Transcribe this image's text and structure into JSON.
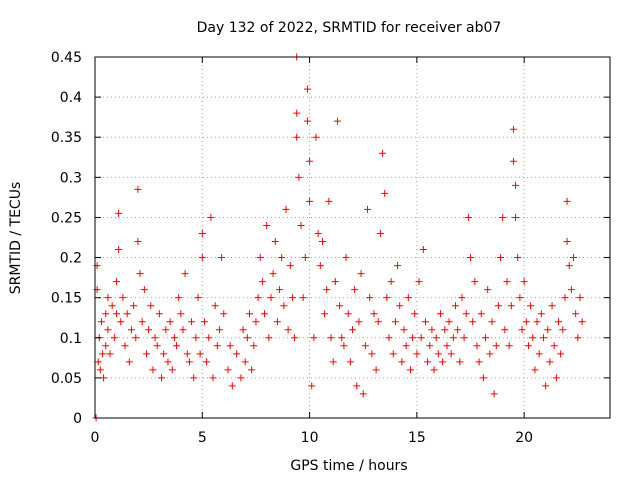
{
  "chart_data": {
    "type": "scatter",
    "title": "Day 132 of 2022, SRMTID for receiver ab07",
    "xlabel": "GPS time / hours",
    "ylabel": "SRMTID / TECUs",
    "xlim": [
      0,
      24
    ],
    "ylim": [
      0,
      0.45
    ],
    "xticks": [
      0,
      5,
      10,
      15,
      20
    ],
    "yticks": [
      0,
      0.05,
      0.1,
      0.15,
      0.2,
      0.25,
      0.3,
      0.35,
      0.4,
      0.45
    ],
    "xtick_labels": [
      "0",
      "5",
      "10",
      "15",
      "20"
    ],
    "ytick_labels": [
      "0",
      "0.05",
      "0.1",
      "0.15",
      "0.2",
      "0.25",
      "0.3",
      "0.35",
      "0.4",
      "0.45"
    ],
    "grid": true,
    "marker": "+",
    "color": "#ff0000",
    "series": [
      {
        "name": "SRMTID",
        "points": [
          [
            0.05,
            0.0
          ],
          [
            0.1,
            0.19
          ],
          [
            0.1,
            0.16
          ],
          [
            0.15,
            0.07
          ],
          [
            0.2,
            0.1
          ],
          [
            0.25,
            0.06
          ],
          [
            0.3,
            0.12
          ],
          [
            0.35,
            0.08
          ],
          [
            0.4,
            0.05
          ],
          [
            0.5,
            0.09
          ],
          [
            0.5,
            0.13
          ],
          [
            0.6,
            0.15
          ],
          [
            0.6,
            0.11
          ],
          [
            0.7,
            0.08
          ],
          [
            0.8,
            0.14
          ],
          [
            0.9,
            0.1
          ],
          [
            1.0,
            0.17
          ],
          [
            1.0,
            0.13
          ],
          [
            1.1,
            0.255
          ],
          [
            1.1,
            0.21
          ],
          [
            1.2,
            0.12
          ],
          [
            1.3,
            0.15
          ],
          [
            1.4,
            0.09
          ],
          [
            1.5,
            0.13
          ],
          [
            1.6,
            0.07
          ],
          [
            1.7,
            0.11
          ],
          [
            1.8,
            0.14
          ],
          [
            1.9,
            0.1
          ],
          [
            2.0,
            0.285
          ],
          [
            2.0,
            0.22
          ],
          [
            2.1,
            0.18
          ],
          [
            2.2,
            0.12
          ],
          [
            2.3,
            0.16
          ],
          [
            2.4,
            0.08
          ],
          [
            2.5,
            0.11
          ],
          [
            2.6,
            0.14
          ],
          [
            2.7,
            0.06
          ],
          [
            2.8,
            0.1
          ],
          [
            2.9,
            0.09
          ],
          [
            3.0,
            0.13
          ],
          [
            3.1,
            0.05
          ],
          [
            3.2,
            0.08
          ],
          [
            3.3,
            0.11
          ],
          [
            3.4,
            0.07
          ],
          [
            3.5,
            0.12
          ],
          [
            3.6,
            0.06
          ],
          [
            3.7,
            0.1
          ],
          [
            3.8,
            0.09
          ],
          [
            3.9,
            0.15
          ],
          [
            4.0,
            0.13
          ],
          [
            4.1,
            0.11
          ],
          [
            4.2,
            0.18
          ],
          [
            4.3,
            0.08
          ],
          [
            4.4,
            0.07
          ],
          [
            4.5,
            0.12
          ],
          [
            4.6,
            0.05
          ],
          [
            4.7,
            0.1
          ],
          [
            4.8,
            0.15
          ],
          [
            4.9,
            0.08
          ],
          [
            5.0,
            0.2
          ],
          [
            5.0,
            0.23
          ],
          [
            5.1,
            0.12
          ],
          [
            5.2,
            0.07
          ],
          [
            5.3,
            0.1
          ],
          [
            5.4,
            0.25
          ],
          [
            5.5,
            0.05
          ],
          [
            5.6,
            0.14
          ],
          [
            5.7,
            0.09
          ],
          [
            5.8,
            0.11
          ],
          [
            5.9,
            0.2
          ],
          [
            6.0,
            0.13
          ],
          [
            6.2,
            0.06
          ],
          [
            6.3,
            0.09
          ],
          [
            6.4,
            0.04
          ],
          [
            6.6,
            0.08
          ],
          [
            6.8,
            0.05
          ],
          [
            6.9,
            0.11
          ],
          [
            7.0,
            0.07
          ],
          [
            7.1,
            0.1
          ],
          [
            7.2,
            0.13
          ],
          [
            7.3,
            0.06
          ],
          [
            7.4,
            0.09
          ],
          [
            7.5,
            0.12
          ],
          [
            7.6,
            0.15
          ],
          [
            7.7,
            0.2
          ],
          [
            7.8,
            0.17
          ],
          [
            7.9,
            0.13
          ],
          [
            8.0,
            0.24
          ],
          [
            8.1,
            0.1
          ],
          [
            8.2,
            0.15
          ],
          [
            8.3,
            0.18
          ],
          [
            8.4,
            0.22
          ],
          [
            8.5,
            0.12
          ],
          [
            8.6,
            0.16
          ],
          [
            8.7,
            0.2
          ],
          [
            8.8,
            0.14
          ],
          [
            8.9,
            0.26
          ],
          [
            9.0,
            0.11
          ],
          [
            9.1,
            0.19
          ],
          [
            9.2,
            0.15
          ],
          [
            9.3,
            0.1
          ],
          [
            9.4,
            0.38
          ],
          [
            9.4,
            0.45
          ],
          [
            9.4,
            0.35
          ],
          [
            9.5,
            0.3
          ],
          [
            9.6,
            0.24
          ],
          [
            9.7,
            0.15
          ],
          [
            9.8,
            0.2
          ],
          [
            9.9,
            0.41
          ],
          [
            9.9,
            0.37
          ],
          [
            10.0,
            0.32
          ],
          [
            10.0,
            0.27
          ],
          [
            10.1,
            0.04
          ],
          [
            10.2,
            0.1
          ],
          [
            10.3,
            0.35
          ],
          [
            10.4,
            0.23
          ],
          [
            10.5,
            0.19
          ],
          [
            10.6,
            0.22
          ],
          [
            10.7,
            0.13
          ],
          [
            10.8,
            0.16
          ],
          [
            10.9,
            0.27
          ],
          [
            11.0,
            0.1
          ],
          [
            11.1,
            0.07
          ],
          [
            11.2,
            0.17
          ],
          [
            11.3,
            0.37
          ],
          [
            11.4,
            0.14
          ],
          [
            11.5,
            0.1
          ],
          [
            11.6,
            0.09
          ],
          [
            11.7,
            0.2
          ],
          [
            11.8,
            0.13
          ],
          [
            11.9,
            0.07
          ],
          [
            12.0,
            0.11
          ],
          [
            12.1,
            0.16
          ],
          [
            12.2,
            0.04
          ],
          [
            12.3,
            0.12
          ],
          [
            12.4,
            0.18
          ],
          [
            12.5,
            0.03
          ],
          [
            12.6,
            0.09
          ],
          [
            12.7,
            0.26
          ],
          [
            12.8,
            0.15
          ],
          [
            12.9,
            0.08
          ],
          [
            13.0,
            0.13
          ],
          [
            13.1,
            0.06
          ],
          [
            13.2,
            0.12
          ],
          [
            13.3,
            0.23
          ],
          [
            13.4,
            0.33
          ],
          [
            13.5,
            0.28
          ],
          [
            13.6,
            0.15
          ],
          [
            13.7,
            0.1
          ],
          [
            13.8,
            0.17
          ],
          [
            13.9,
            0.08
          ],
          [
            14.0,
            0.12
          ],
          [
            14.1,
            0.19
          ],
          [
            14.2,
            0.14
          ],
          [
            14.3,
            0.07
          ],
          [
            14.4,
            0.11
          ],
          [
            14.5,
            0.09
          ],
          [
            14.6,
            0.15
          ],
          [
            14.7,
            0.06
          ],
          [
            14.8,
            0.1
          ],
          [
            14.9,
            0.13
          ],
          [
            15.0,
            0.08
          ],
          [
            15.1,
            0.17
          ],
          [
            15.2,
            0.1
          ],
          [
            15.3,
            0.21
          ],
          [
            15.4,
            0.12
          ],
          [
            15.5,
            0.07
          ],
          [
            15.6,
            0.09
          ],
          [
            15.7,
            0.11
          ],
          [
            15.8,
            0.06
          ],
          [
            15.9,
            0.1
          ],
          [
            16.0,
            0.08
          ],
          [
            16.1,
            0.13
          ],
          [
            16.2,
            0.07
          ],
          [
            16.3,
            0.11
          ],
          [
            16.4,
            0.09
          ],
          [
            16.5,
            0.12
          ],
          [
            16.6,
            0.08
          ],
          [
            16.7,
            0.1
          ],
          [
            16.8,
            0.14
          ],
          [
            16.9,
            0.11
          ],
          [
            17.0,
            0.07
          ],
          [
            17.1,
            0.15
          ],
          [
            17.2,
            0.1
          ],
          [
            17.3,
            0.13
          ],
          [
            17.4,
            0.25
          ],
          [
            17.5,
            0.2
          ],
          [
            17.6,
            0.12
          ],
          [
            17.7,
            0.17
          ],
          [
            17.8,
            0.09
          ],
          [
            17.9,
            0.07
          ],
          [
            18.0,
            0.13
          ],
          [
            18.1,
            0.05
          ],
          [
            18.2,
            0.1
          ],
          [
            18.3,
            0.16
          ],
          [
            18.4,
            0.08
          ],
          [
            18.5,
            0.12
          ],
          [
            18.6,
            0.03
          ],
          [
            18.7,
            0.09
          ],
          [
            18.8,
            0.14
          ],
          [
            18.9,
            0.2
          ],
          [
            19.0,
            0.25
          ],
          [
            19.1,
            0.11
          ],
          [
            19.2,
            0.17
          ],
          [
            19.3,
            0.09
          ],
          [
            19.4,
            0.14
          ],
          [
            19.5,
            0.36
          ],
          [
            19.5,
            0.32
          ],
          [
            19.6,
            0.29
          ],
          [
            19.6,
            0.25
          ],
          [
            19.7,
            0.2
          ],
          [
            19.8,
            0.15
          ],
          [
            19.9,
            0.11
          ],
          [
            20.0,
            0.17
          ],
          [
            20.1,
            0.12
          ],
          [
            20.2,
            0.09
          ],
          [
            20.3,
            0.14
          ],
          [
            20.4,
            0.1
          ],
          [
            20.5,
            0.06
          ],
          [
            20.6,
            0.12
          ],
          [
            20.7,
            0.08
          ],
          [
            20.8,
            0.13
          ],
          [
            20.9,
            0.1
          ],
          [
            21.0,
            0.04
          ],
          [
            21.1,
            0.11
          ],
          [
            21.2,
            0.07
          ],
          [
            21.3,
            0.14
          ],
          [
            21.4,
            0.09
          ],
          [
            21.5,
            0.05
          ],
          [
            21.6,
            0.12
          ],
          [
            21.7,
            0.08
          ],
          [
            21.8,
            0.11
          ],
          [
            21.9,
            0.15
          ],
          [
            22.0,
            0.27
          ],
          [
            22.0,
            0.22
          ],
          [
            22.1,
            0.19
          ],
          [
            22.2,
            0.16
          ],
          [
            22.3,
            0.2
          ],
          [
            22.4,
            0.13
          ],
          [
            22.5,
            0.1
          ],
          [
            22.6,
            0.15
          ],
          [
            22.7,
            0.12
          ]
        ]
      }
    ]
  }
}
